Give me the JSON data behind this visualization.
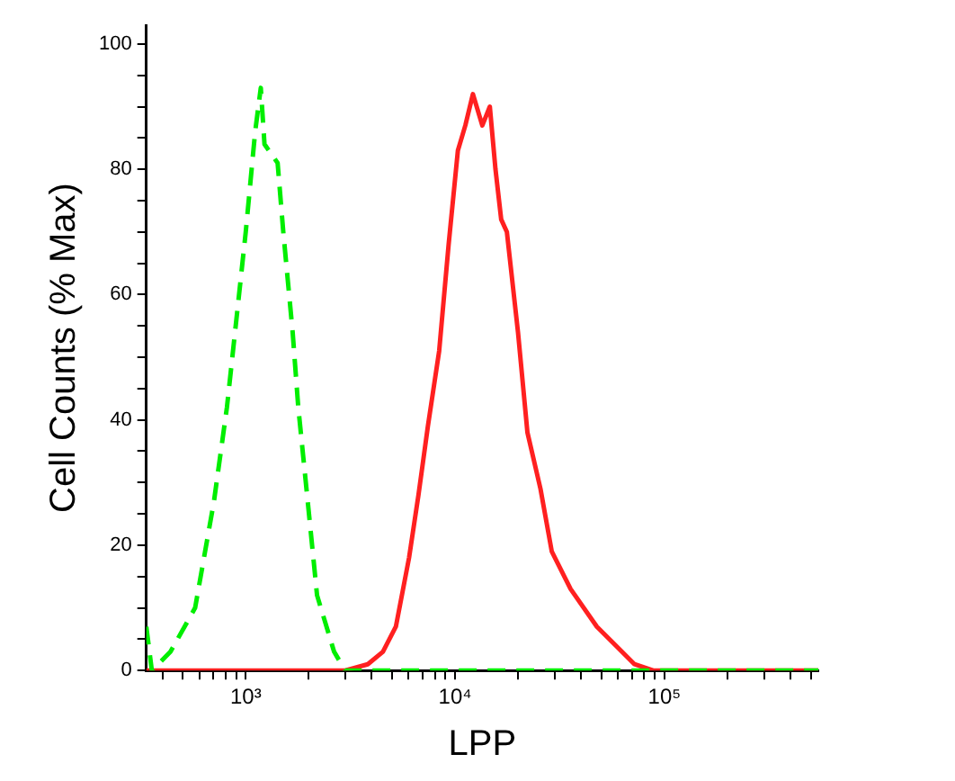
{
  "chart_data": {
    "type": "line",
    "xlabel": "LPP",
    "ylabel": "Cell Counts (% Max)",
    "log": "x",
    "xlim": [
      335,
      543000
    ],
    "ylim": [
      0,
      103
    ],
    "xticks": [
      {
        "value": 400,
        "label": null
      },
      {
        "value": 500,
        "label": null
      },
      {
        "value": 600,
        "label": null
      },
      {
        "value": 700,
        "label": null
      },
      {
        "value": 800,
        "label": null
      },
      {
        "value": 900,
        "label": null
      },
      {
        "value": 1000,
        "label": "10³"
      },
      {
        "value": 2000,
        "label": null
      },
      {
        "value": 3000,
        "label": null
      },
      {
        "value": 4000,
        "label": null
      },
      {
        "value": 5000,
        "label": null
      },
      {
        "value": 6000,
        "label": null
      },
      {
        "value": 7000,
        "label": null
      },
      {
        "value": 8000,
        "label": null
      },
      {
        "value": 9000,
        "label": null
      },
      {
        "value": 10000,
        "label": "10⁴"
      },
      {
        "value": 20000,
        "label": null
      },
      {
        "value": 30000,
        "label": null
      },
      {
        "value": 40000,
        "label": null
      },
      {
        "value": 50000,
        "label": null
      },
      {
        "value": 60000,
        "label": null
      },
      {
        "value": 70000,
        "label": null
      },
      {
        "value": 80000,
        "label": null
      },
      {
        "value": 90000,
        "label": null
      },
      {
        "value": 100000,
        "label": "10⁵"
      },
      {
        "value": 200000,
        "label": null
      },
      {
        "value": 300000,
        "label": null
      },
      {
        "value": 400000,
        "label": null
      },
      {
        "value": 500000,
        "label": null
      }
    ],
    "yticks": [
      0,
      {
        "value": 5,
        "label": null
      },
      {
        "value": 10,
        "label": null
      },
      {
        "value": 15,
        "label": null
      },
      20,
      {
        "value": 25,
        "label": null
      },
      {
        "value": 30,
        "label": null
      },
      {
        "value": 35,
        "label": null
      },
      40,
      {
        "value": 45,
        "label": null
      },
      {
        "value": 50,
        "label": null
      },
      {
        "value": 55,
        "label": null
      },
      60,
      {
        "value": 65,
        "label": null
      },
      {
        "value": 70,
        "label": null
      },
      {
        "value": 75,
        "label": null
      },
      80,
      {
        "value": 85,
        "label": null
      },
      {
        "value": 90,
        "label": null
      },
      {
        "value": 95,
        "label": null
      },
      100
    ],
    "grid": false,
    "legend": false,
    "marker": "none",
    "series": [
      {
        "color": "#00ee00",
        "line_style": "dashed",
        "x": [
          335,
          356,
          437,
          573,
          705,
          813,
          902,
          1000,
          1109,
          1180,
          1229,
          1420,
          1511,
          1675,
          1782,
          1977,
          2191,
          2642,
          2986,
          543000
        ],
        "values": [
          7,
          0,
          3,
          10,
          27,
          42,
          56,
          70,
          86,
          93,
          84,
          81,
          70,
          54,
          42,
          27,
          12,
          3,
          0,
          0
        ]
      },
      {
        "color": "#ff2020",
        "line_style": "solid",
        "x": [
          335,
          2986,
          3828,
          4520,
          5212,
          6026,
          6683,
          7413,
          8392,
          9312,
          10310,
          11190,
          12160,
          13490,
          14650,
          15590,
          16600,
          17670,
          19970,
          22150,
          25570,
          28950,
          35620,
          47540,
          58420,
          71900,
          88350,
          543000
        ],
        "values": [
          0,
          0,
          1,
          3,
          7,
          18,
          28,
          39,
          51,
          68,
          83,
          87,
          92,
          87,
          90,
          80,
          72,
          70,
          54,
          38,
          29,
          19,
          13,
          7,
          4,
          1,
          0,
          0
        ]
      }
    ]
  }
}
